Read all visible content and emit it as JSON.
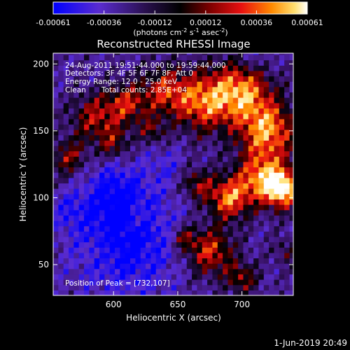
{
  "chart_data": {
    "type": "heatmap",
    "title": "Reconstructed RHESSI Image",
    "xlabel": "Heliocentric X (arcsec)",
    "ylabel": "Heliocentric Y (arcsec)",
    "xlim": [
      553,
      740
    ],
    "ylim": [
      27,
      208
    ],
    "x_ticks": [
      {
        "value": 600,
        "label": "600"
      },
      {
        "value": 650,
        "label": "650"
      },
      {
        "value": 700,
        "label": "700"
      }
    ],
    "y_ticks": [
      {
        "value": 50,
        "label": "50"
      },
      {
        "value": 100,
        "label": "100"
      },
      {
        "value": 150,
        "label": "150"
      },
      {
        "value": 200,
        "label": "200"
      }
    ],
    "colorbar": {
      "range": [
        -0.00061,
        0.00061
      ],
      "tick_labels": [
        "-0.00061",
        "-0.00036",
        "-0.00012",
        "0.00012",
        "0.00036",
        "0.00061"
      ],
      "units_label": "(photons cm",
      "units_exp1": "-2",
      "units_mid": " s",
      "units_exp2": "-1",
      "units_mid2": " asec",
      "units_exp3": "-2",
      "units_end": ")"
    },
    "peak": {
      "x": 732,
      "y": 107
    },
    "grid": false,
    "colormap": [
      "#0000ff",
      "#6a2ab8",
      "#3d1666",
      "#000000",
      "#7a0000",
      "#e01010",
      "#ff7a00",
      "#ffd040",
      "#ffffff"
    ]
  },
  "annotations": {
    "time_range": "24-Aug-2011 19:51:44.000 to 19:59:44.000",
    "detectors": "Detectors: 3F 4F 5F 6F 7F 8F, Att 0",
    "energy": "Energy Range: 12.0 - 25.0 keV",
    "clean": "Clean",
    "counts": "Total counts: 2.85E+04",
    "peak_text": "Position of Peak = [732,107]"
  },
  "footer": {
    "date": "1-Jun-2019 20:49"
  }
}
